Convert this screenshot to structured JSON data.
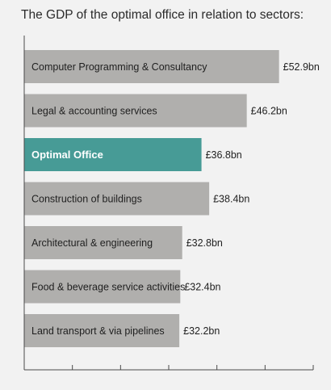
{
  "chart_data": {
    "type": "bar",
    "orientation": "horizontal",
    "title": "The GDP of the optimal office in relation to sectors:",
    "unit_prefix": "£",
    "unit_suffix": "bn",
    "categories": [
      "Computer Programming & Consultancy",
      "Legal & accounting services",
      "Optimal Office",
      "Construction of buildings",
      "Architectural & engineering",
      "Food & beverage service activities",
      "Land transport & via pipelines"
    ],
    "values": [
      52.9,
      46.2,
      36.8,
      38.4,
      32.8,
      32.4,
      32.2
    ],
    "value_labels": [
      "£52.9bn",
      "£46.2bn",
      "£36.8bn",
      "£38.4bn",
      "£32.8bn",
      "£32.4bn",
      "£32.2bn"
    ],
    "highlight_index": 2,
    "xlim": [
      0,
      60
    ],
    "x_ticks": 6,
    "grid": false,
    "colors": {
      "bar": "#b0afad",
      "highlight": "#479b96",
      "axis": "#4a4a4a",
      "background": "#f2f2f2"
    }
  }
}
